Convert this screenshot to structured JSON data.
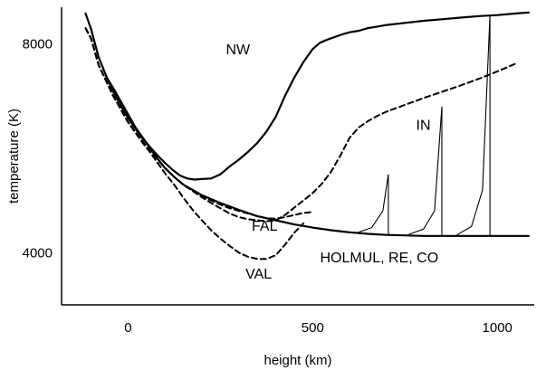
{
  "chart_data": {
    "type": "line",
    "xlabel": "height (km)",
    "ylabel": "temperature (K)",
    "xlim": [
      -180,
      1100
    ],
    "ylim": [
      3000,
      8700
    ],
    "xticks": [
      {
        "value": 0,
        "label": "0"
      },
      {
        "value": 500,
        "label": "500"
      },
      {
        "value": 1000,
        "label": "1000"
      }
    ],
    "yticks": [
      {
        "value": 4000,
        "label": "4000"
      },
      {
        "value": 8000,
        "label": "8000"
      }
    ],
    "series": [
      {
        "name": "NW",
        "style": "solid-thick",
        "x": [
          -115,
          -100,
          -80,
          -60,
          -40,
          -20,
          0,
          20,
          40,
          60,
          80,
          100,
          120,
          140,
          160,
          180,
          200,
          225,
          250,
          275,
          300,
          325,
          350,
          375,
          400,
          425,
          450,
          475,
          500,
          520,
          540,
          560,
          580,
          600,
          625,
          650,
          675,
          700,
          750,
          800,
          850,
          900,
          950,
          1000,
          1050,
          1085
        ],
        "y": [
          8580,
          8280,
          7750,
          7400,
          7080,
          6820,
          6580,
          6370,
          6180,
          6020,
          5860,
          5720,
          5590,
          5480,
          5420,
          5400,
          5410,
          5420,
          5500,
          5650,
          5780,
          5930,
          6100,
          6320,
          6600,
          7000,
          7350,
          7650,
          7900,
          8020,
          8080,
          8130,
          8180,
          8220,
          8250,
          8300,
          8330,
          8360,
          8400,
          8440,
          8470,
          8500,
          8530,
          8550,
          8580,
          8600
        ]
      },
      {
        "name": "IN",
        "style": "dashed",
        "x": [
          -115,
          -100,
          -80,
          -60,
          -40,
          -20,
          0,
          20,
          40,
          60,
          80,
          100,
          125,
          150,
          175,
          200,
          225,
          250,
          275,
          300,
          325,
          350,
          375,
          400,
          425,
          450,
          475,
          500,
          525,
          550,
          575,
          600,
          625,
          650,
          675,
          700,
          750,
          800,
          850,
          900,
          950,
          1000,
          1050
        ],
        "y": [
          8300,
          8100,
          7600,
          7300,
          7000,
          6750,
          6500,
          6300,
          6120,
          5950,
          5790,
          5620,
          5450,
          5300,
          5180,
          5060,
          4950,
          4850,
          4750,
          4680,
          4640,
          4620,
          4600,
          4620,
          4720,
          4860,
          5000,
          5140,
          5320,
          5550,
          5860,
          6200,
          6400,
          6520,
          6620,
          6700,
          6830,
          6960,
          7080,
          7200,
          7330,
          7470,
          7620
        ]
      },
      {
        "name": "FAL",
        "style": "dashed",
        "x": [
          -115,
          -100,
          -80,
          -60,
          -40,
          -20,
          0,
          20,
          40,
          60,
          80,
          100,
          125,
          150,
          175,
          200,
          225,
          250,
          275,
          300,
          325,
          350,
          375,
          400,
          425,
          450,
          475,
          500
        ],
        "y": [
          8300,
          8100,
          7600,
          7300,
          7000,
          6750,
          6500,
          6300,
          6120,
          5950,
          5790,
          5620,
          5450,
          5300,
          5180,
          5080,
          5000,
          4920,
          4850,
          4800,
          4750,
          4700,
          4660,
          4650,
          4680,
          4720,
          4760,
          4780
        ]
      },
      {
        "name": "VAL",
        "style": "dashed",
        "x": [
          -115,
          -100,
          -80,
          -60,
          -40,
          -20,
          0,
          20,
          40,
          60,
          80,
          100,
          125,
          150,
          175,
          200,
          225,
          250,
          275,
          300,
          325,
          350,
          375,
          400,
          425,
          450,
          475
        ],
        "y": [
          8300,
          8100,
          7600,
          7300,
          7000,
          6750,
          6500,
          6300,
          6100,
          5920,
          5720,
          5520,
          5300,
          5050,
          4820,
          4620,
          4430,
          4270,
          4130,
          4000,
          3920,
          3880,
          3880,
          3950,
          4150,
          4380,
          4560
        ]
      },
      {
        "name": "HOLMUL, RE, CO",
        "style": "solid-thick",
        "x": [
          -60,
          -40,
          -20,
          0,
          20,
          40,
          60,
          80,
          100,
          125,
          150,
          175,
          200,
          250,
          300,
          350,
          400,
          450,
          500,
          550,
          600,
          650,
          700,
          750,
          800,
          850,
          900,
          950,
          1000,
          1050,
          1085
        ],
        "y": [
          7380,
          7150,
          6900,
          6650,
          6400,
          6200,
          6000,
          5800,
          5620,
          5450,
          5300,
          5200,
          5100,
          4950,
          4820,
          4700,
          4620,
          4540,
          4480,
          4430,
          4390,
          4360,
          4340,
          4330,
          4320,
          4320,
          4320,
          4320,
          4320,
          4320,
          4320
        ]
      }
    ],
    "spikes": [
      {
        "name": "HOLMUL",
        "x": [
          620,
          660,
          690,
          705,
          705
        ],
        "y": [
          4380,
          4480,
          4800,
          5500,
          4340
        ]
      },
      {
        "name": "RE",
        "x": [
          760,
          800,
          830,
          850,
          850
        ],
        "y": [
          4350,
          4450,
          4800,
          6800,
          4320
        ]
      },
      {
        "name": "CO",
        "x": [
          890,
          930,
          960,
          980,
          980
        ],
        "y": [
          4340,
          4500,
          5200,
          8550,
          4320
        ]
      }
    ],
    "annotations": [
      {
        "text": "NW",
        "x": 265,
        "y": 7800
      },
      {
        "text": "IN",
        "x": 780,
        "y": 6350
      },
      {
        "text": "FAL",
        "x": 335,
        "y": 4420
      },
      {
        "text": "VAL",
        "x": 318,
        "y": 3500
      },
      {
        "text": "HOLMUL, RE, CO",
        "x": 520,
        "y": 3810
      }
    ]
  }
}
